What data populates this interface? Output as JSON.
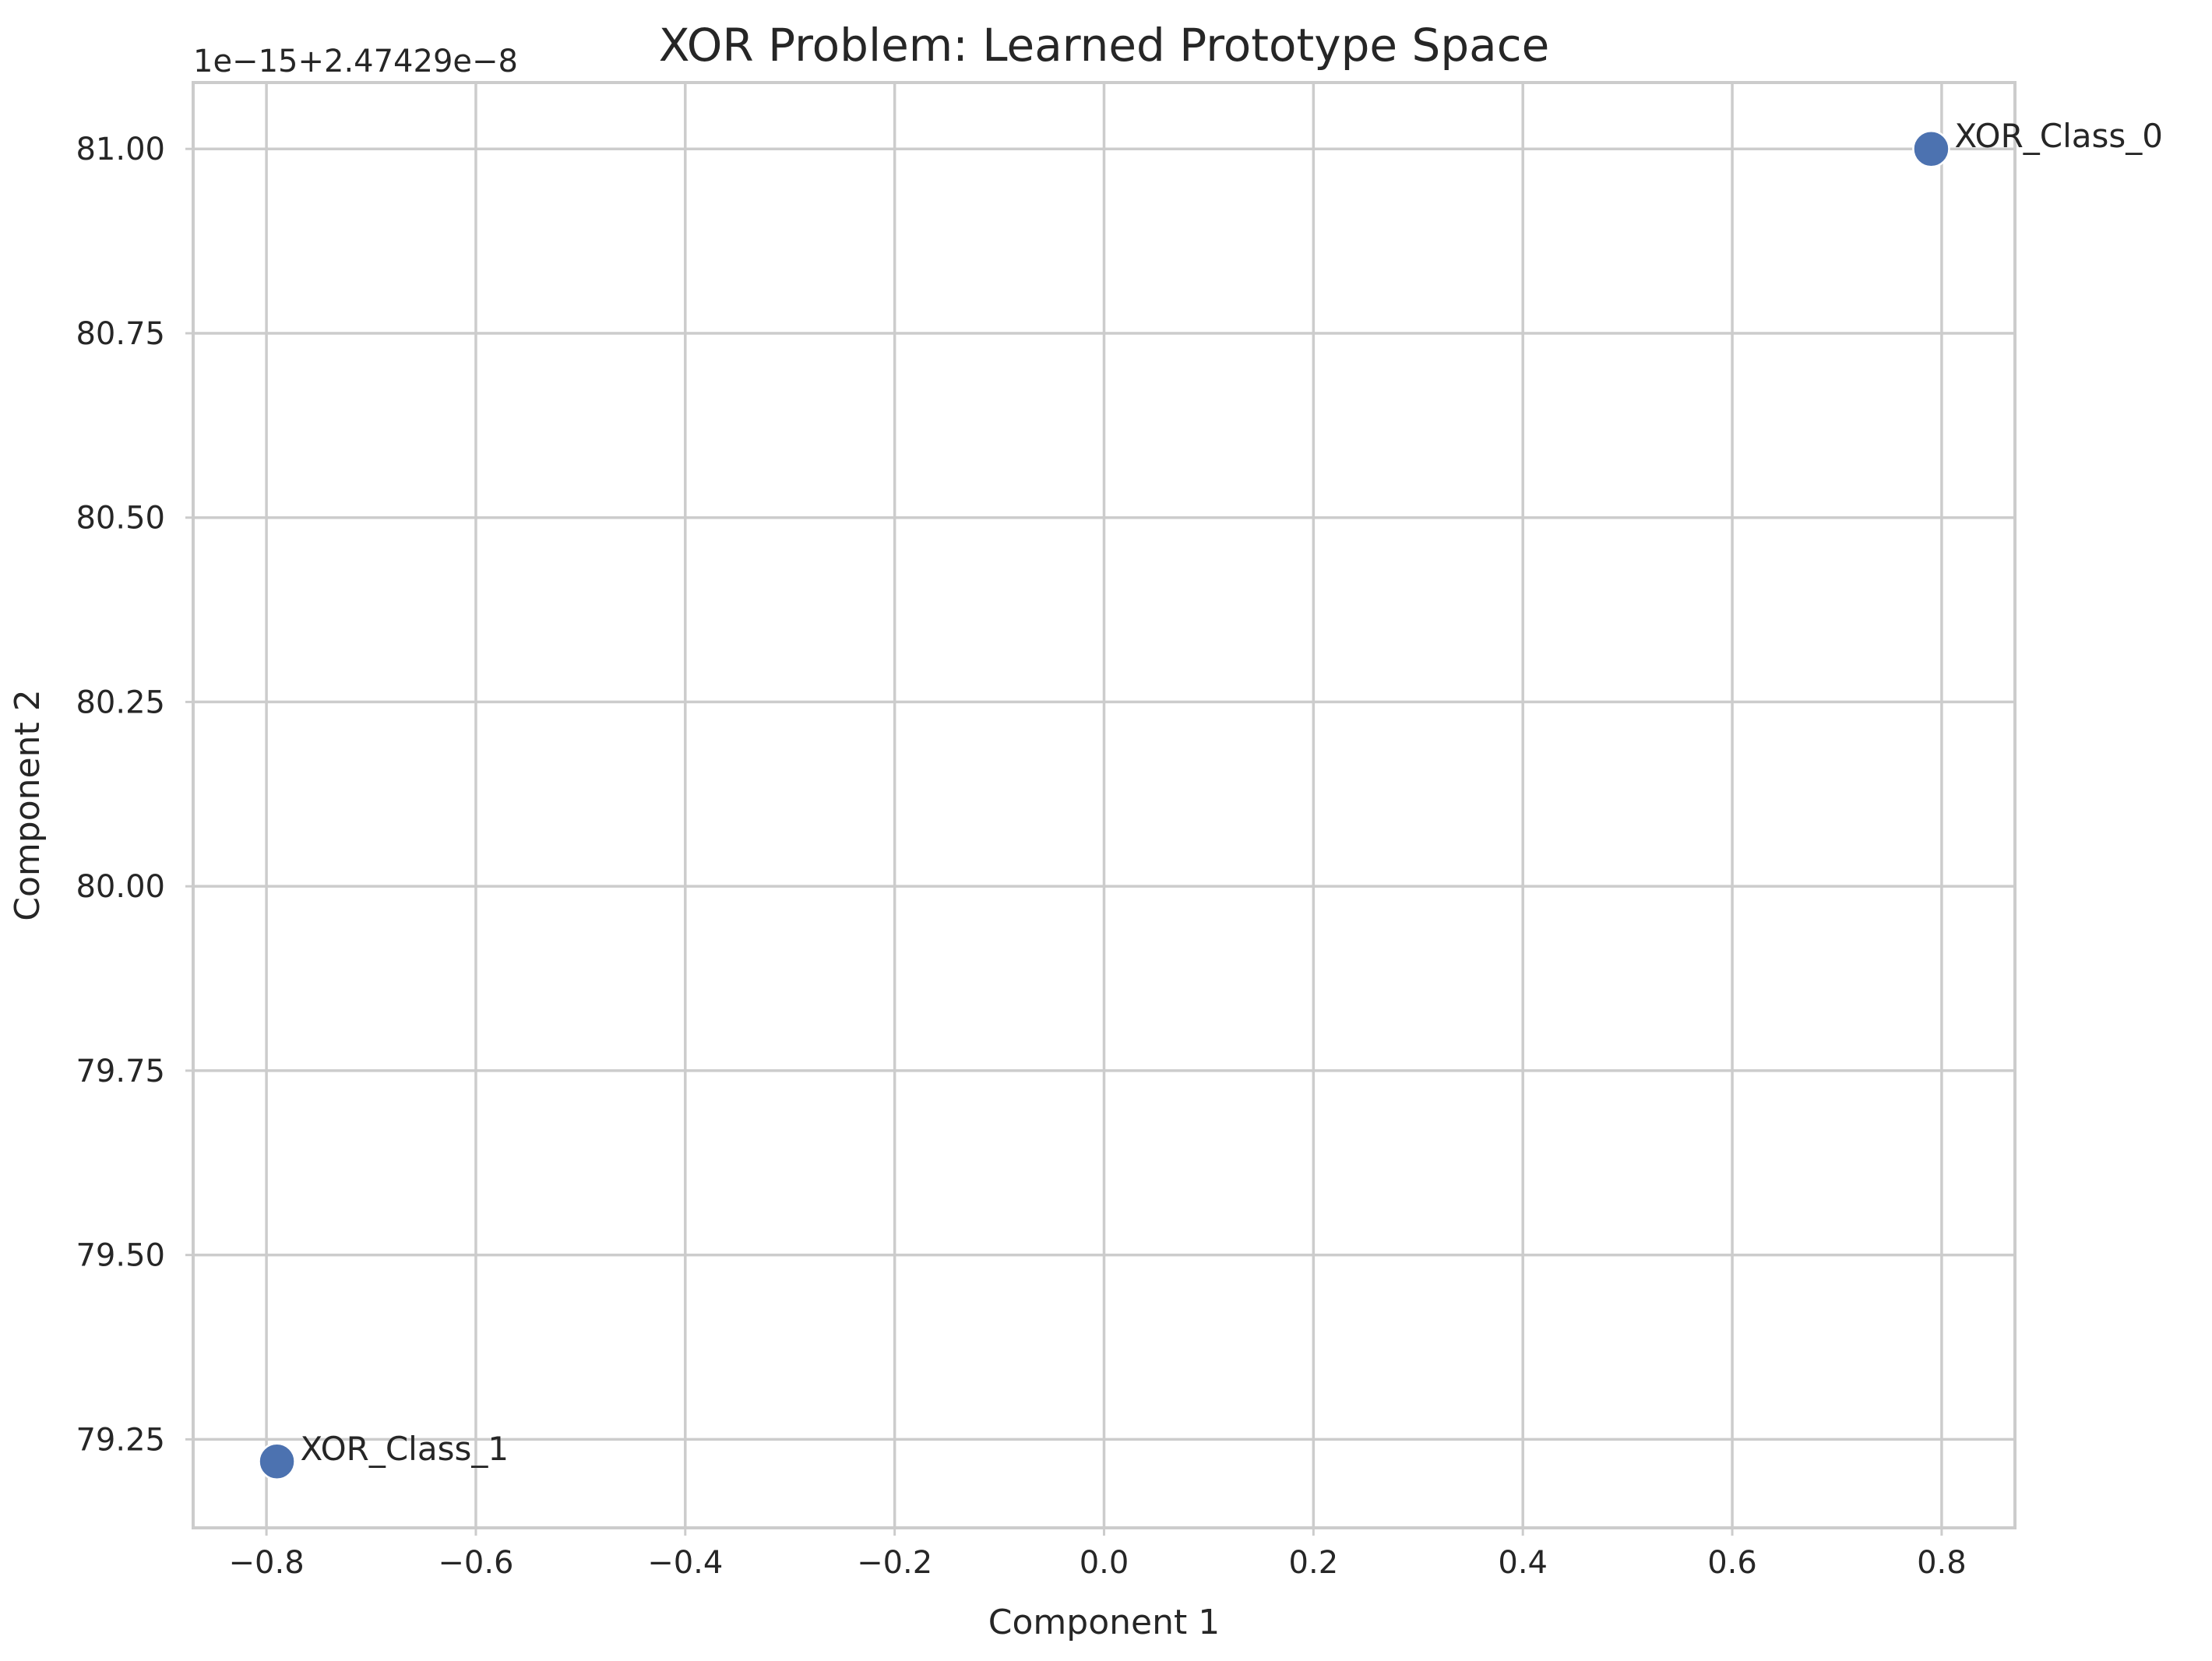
{
  "chart_data": {
    "type": "scatter",
    "title": "XOR Problem: Learned Prototype Space",
    "xlabel": "Component 1",
    "ylabel": "Component 2",
    "y_offset_label": "1e−15+2.47429e−8",
    "xlim": [
      -0.87,
      0.87
    ],
    "ylim": [
      79.13,
      81.09
    ],
    "x_ticks": [
      -0.8,
      -0.6,
      -0.4,
      -0.2,
      0.0,
      0.2,
      0.4,
      0.6,
      0.8
    ],
    "x_tick_labels": [
      "−0.8",
      "−0.6",
      "−0.4",
      "−0.2",
      "0.0",
      "0.2",
      "0.4",
      "0.6",
      "0.8"
    ],
    "y_ticks": [
      79.25,
      79.5,
      79.75,
      80.0,
      80.25,
      80.5,
      80.75,
      81.0
    ],
    "y_tick_labels": [
      "79.25",
      "79.50",
      "79.75",
      "80.00",
      "80.25",
      "80.50",
      "80.75",
      "81.00"
    ],
    "grid": true,
    "marker_color": "#4c72b0",
    "points": [
      {
        "label": "XOR_Class_0",
        "x": 0.79,
        "y": 81.0
      },
      {
        "label": "XOR_Class_1",
        "x": -0.79,
        "y": 79.22
      }
    ]
  }
}
